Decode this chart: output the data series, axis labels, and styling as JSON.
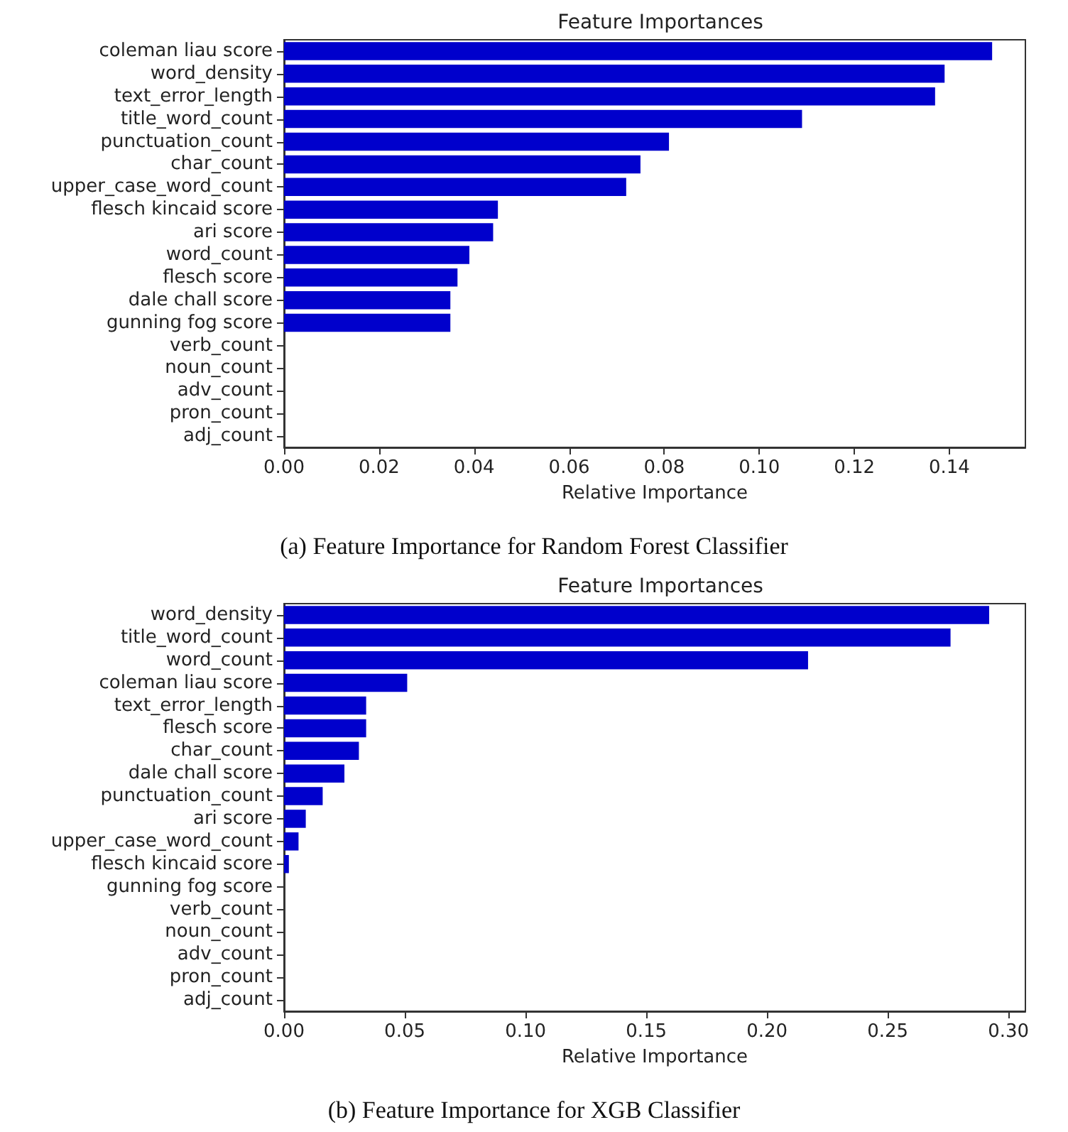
{
  "chart_data": [
    {
      "type": "bar",
      "orientation": "horizontal",
      "title": "Feature Importances",
      "xlabel": "Relative Importance",
      "annotations": [
        "(a) Feature Importance for Random Forest Classifier"
      ],
      "categories": [
        "coleman liau score",
        "word_density",
        "text_error_length",
        "title_word_count",
        "punctuation_count",
        "char_count",
        "upper_case_word_count",
        "flesch kincaid score",
        "ari score",
        "word_count",
        "flesch score",
        "dale chall score",
        "gunning fog score",
        "verb_count",
        "noun_count",
        "adv_count",
        "pron_count",
        "adj_count"
      ],
      "series": [
        {
          "color": "#0000cc",
          "values": [
            0.149,
            0.139,
            0.137,
            0.109,
            0.081,
            0.075,
            0.072,
            0.045,
            0.044,
            0.039,
            0.0365,
            0.035,
            0.035,
            0,
            0,
            0,
            0,
            0
          ]
        }
      ],
      "xlim": [
        0,
        0.156
      ],
      "xticks": [
        {
          "value": 0,
          "label": "0.00"
        },
        {
          "value": 0.02,
          "label": "0.02"
        },
        {
          "value": 0.04,
          "label": "0.04"
        },
        {
          "value": 0.06,
          "label": "0.06"
        },
        {
          "value": 0.08,
          "label": "0.08"
        },
        {
          "value": 0.1,
          "label": "0.10"
        },
        {
          "value": 0.12,
          "label": "0.12"
        },
        {
          "value": 0.14,
          "label": "0.14"
        }
      ],
      "grid": false
    },
    {
      "type": "bar",
      "orientation": "horizontal",
      "title": "Feature Importances",
      "xlabel": "Relative Importance",
      "annotations": [
        "(b) Feature Importance for XGB Classifier"
      ],
      "categories": [
        "word_density",
        "title_word_count",
        "word_count",
        "coleman liau score",
        "text_error_length",
        "flesch score",
        "char_count",
        "dale chall score",
        "punctuation_count",
        "ari score",
        "upper_case_word_count",
        "flesch kincaid score",
        "gunning fog score",
        "verb_count",
        "noun_count",
        "adv_count",
        "pron_count",
        "adj_count"
      ],
      "series": [
        {
          "color": "#0000cc",
          "values": [
            0.292,
            0.276,
            0.217,
            0.051,
            0.034,
            0.034,
            0.031,
            0.025,
            0.016,
            0.009,
            0.006,
            0.002,
            0,
            0,
            0,
            0,
            0,
            0
          ]
        }
      ],
      "xlim": [
        0,
        0.307
      ],
      "xticks": [
        {
          "value": 0,
          "label": "0.00"
        },
        {
          "value": 0.05,
          "label": "0.05"
        },
        {
          "value": 0.1,
          "label": "0.10"
        },
        {
          "value": 0.15,
          "label": "0.15"
        },
        {
          "value": 0.2,
          "label": "0.20"
        },
        {
          "value": 0.25,
          "label": "0.25"
        },
        {
          "value": 0.3,
          "label": "0.30"
        }
      ],
      "grid": false
    }
  ]
}
